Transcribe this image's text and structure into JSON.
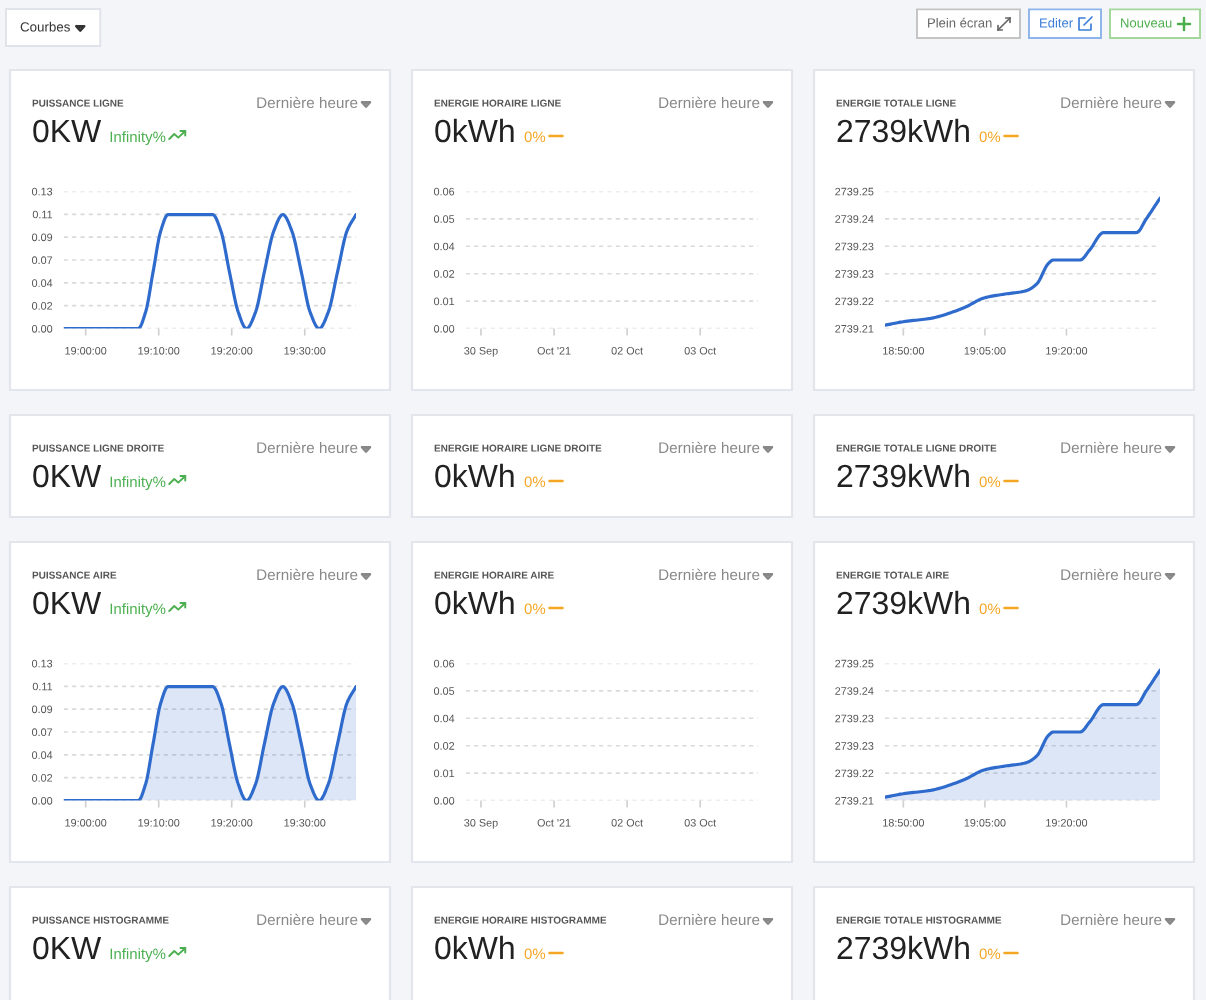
{
  "chart_data": [
    {
      "type": "other",
      "annotations": [
        "Courbes",
        "Plein écran",
        "Editer",
        "Nouveau"
      ]
    },
    {
      "type": "line",
      "title": "PUISSANCE LIGNE",
      "subtitle": "0KW",
      "annotations": [
        "Infinity%",
        "Dernière heure"
      ],
      "color": "#2f6bcc",
      "x": [
        18.95,
        19.12,
        19.137,
        19.154,
        19.171,
        19.188,
        19.29,
        19.309,
        19.328,
        19.348,
        19.367,
        19.388,
        19.408,
        19.429,
        19.45,
        19.471,
        19.492,
        19.512,
        19.533,
        19.554,
        19.575,
        19.596,
        19.617
      ],
      "values": [
        0,
        0,
        0.016,
        0.054,
        0.092,
        0.108,
        0.108,
        0.092,
        0.054,
        0.016,
        0,
        0.016,
        0.054,
        0.092,
        0.108,
        0.092,
        0.054,
        0.016,
        0,
        0.016,
        0.054,
        0.092,
        0.108
      ],
      "xlim": [
        18.95,
        19.617
      ],
      "xticks": [
        {
          "value": 19,
          "label": "19:00:00"
        },
        {
          "value": 19.1667,
          "label": "19:10:00"
        },
        {
          "value": 19.3333,
          "label": "19:20:00"
        },
        {
          "value": 19.5,
          "label": "19:30:00"
        }
      ],
      "ylim": [
        0,
        0.13
      ],
      "yticks": [
        {
          "value": 0,
          "label": "0.00"
        },
        {
          "value": 0.0217,
          "label": "0.02"
        },
        {
          "value": 0.0433,
          "label": "0.04"
        },
        {
          "value": 0.065,
          "label": "0.07"
        },
        {
          "value": 0.0867,
          "label": "0.09"
        },
        {
          "value": 0.1083,
          "label": "0.11"
        },
        {
          "value": 0.13,
          "label": "0.13"
        }
      ],
      "grid": "y"
    },
    {
      "type": "line",
      "title": "ENERGIE HORAIRE LIGNE",
      "subtitle": "0kWh",
      "annotations": [
        "0%",
        "Dernière heure"
      ],
      "xlim": [
        "2021-09-29T19:00",
        "2021-10-03T19:00"
      ],
      "xticks": [
        {
          "value": "2021-09-30",
          "label": "30 Sep"
        },
        {
          "value": "2021-10-01",
          "label": "Oct '21"
        },
        {
          "value": "2021-10-02",
          "label": "02 Oct"
        },
        {
          "value": "2021-10-03",
          "label": "03 Oct"
        }
      ],
      "ylim": [
        0,
        0.06
      ],
      "yticks": [
        {
          "value": 0,
          "label": "0.00"
        },
        {
          "value": 0.012,
          "label": "0.01"
        },
        {
          "value": 0.024,
          "label": "0.02"
        },
        {
          "value": 0.036,
          "label": "0.04"
        },
        {
          "value": 0.048,
          "label": "0.05"
        },
        {
          "value": 0.06,
          "label": "0.06"
        }
      ],
      "grid": "y"
    },
    {
      "type": "line",
      "title": "ENERGIE TOTALE LIGNE",
      "subtitle": "2739kWh",
      "annotations": [
        "0%",
        "Dernière heure"
      ],
      "color": "#2f6bcc",
      "x": [
        18.777,
        18.833,
        18.917,
        19.017,
        19.083,
        19.14,
        19.208,
        19.242,
        19.278,
        19.293,
        19.375,
        19.405,
        19.447,
        19.548,
        19.578,
        19.62
      ],
      "values": [
        2739.211,
        2739.212,
        2739.213,
        2739.216,
        2739.219,
        2739.22,
        2739.221,
        2739.223,
        2739.229,
        2739.23,
        2739.23,
        2739.233,
        2739.238,
        2739.238,
        2739.242,
        2739.248
      ],
      "xlim": [
        18.777,
        19.62
      ],
      "xticks": [
        {
          "value": 18.8333,
          "label": "18:50:00"
        },
        {
          "value": 19.0833,
          "label": "19:05:00"
        },
        {
          "value": 19.3333,
          "label": "19:20:00"
        }
      ],
      "ylim": [
        2739.21,
        2739.25
      ],
      "yticks": [
        {
          "value": 2739.21,
          "label": "2739.21"
        },
        {
          "value": 2739.218,
          "label": "2739.22"
        },
        {
          "value": 2739.226,
          "label": "2739.23"
        },
        {
          "value": 2739.234,
          "label": "2739.23"
        },
        {
          "value": 2739.242,
          "label": "2739.24"
        },
        {
          "value": 2739.25,
          "label": "2739.25"
        }
      ],
      "grid": "y"
    },
    {
      "type": "other",
      "title": "PUISSANCE LIGNE DROITE",
      "subtitle": "0KW",
      "annotations": [
        "Infinity%",
        "Dernière heure"
      ]
    },
    {
      "type": "other",
      "title": "ENERGIE HORAIRE LIGNE DROITE",
      "subtitle": "0kWh",
      "annotations": [
        "0%",
        "Dernière heure"
      ]
    },
    {
      "type": "other",
      "title": "ENERGIE TOTALE LIGNE DROITE",
      "subtitle": "2739kWh",
      "annotations": [
        "0%",
        "Dernière heure"
      ]
    },
    {
      "type": "area",
      "title": "PUISSANCE AIRE",
      "subtitle": "0KW",
      "annotations": [
        "Infinity%",
        "Dernière heure"
      ],
      "color": "#2f6bcc",
      "x": [
        18.95,
        19.12,
        19.137,
        19.154,
        19.171,
        19.188,
        19.29,
        19.309,
        19.328,
        19.348,
        19.367,
        19.388,
        19.408,
        19.429,
        19.45,
        19.471,
        19.492,
        19.512,
        19.533,
        19.554,
        19.575,
        19.596,
        19.617
      ],
      "values": [
        0,
        0,
        0.016,
        0.054,
        0.092,
        0.108,
        0.108,
        0.092,
        0.054,
        0.016,
        0,
        0.016,
        0.054,
        0.092,
        0.108,
        0.092,
        0.054,
        0.016,
        0,
        0.016,
        0.054,
        0.092,
        0.108
      ],
      "xlim": [
        18.95,
        19.617
      ],
      "xticks": [
        {
          "value": 19,
          "label": "19:00:00"
        },
        {
          "value": 19.1667,
          "label": "19:10:00"
        },
        {
          "value": 19.3333,
          "label": "19:20:00"
        },
        {
          "value": 19.5,
          "label": "19:30:00"
        }
      ],
      "ylim": [
        0,
        0.13
      ],
      "yticks": [
        {
          "value": 0,
          "label": "0.00"
        },
        {
          "value": 0.0217,
          "label": "0.02"
        },
        {
          "value": 0.0433,
          "label": "0.04"
        },
        {
          "value": 0.065,
          "label": "0.07"
        },
        {
          "value": 0.0867,
          "label": "0.09"
        },
        {
          "value": 0.1083,
          "label": "0.11"
        },
        {
          "value": 0.13,
          "label": "0.13"
        }
      ],
      "grid": "y"
    },
    {
      "type": "area",
      "title": "ENERGIE HORAIRE AIRE",
      "subtitle": "0kWh",
      "annotations": [
        "0%",
        "Dernière heure"
      ],
      "xlim": [
        "2021-09-29T19:00",
        "2021-10-03T19:00"
      ],
      "xticks": [
        {
          "value": "2021-09-30",
          "label": "30 Sep"
        },
        {
          "value": "2021-10-01",
          "label": "Oct '21"
        },
        {
          "value": "2021-10-02",
          "label": "02 Oct"
        },
        {
          "value": "2021-10-03",
          "label": "03 Oct"
        }
      ],
      "ylim": [
        0,
        0.06
      ],
      "yticks": [
        {
          "value": 0,
          "label": "0.00"
        },
        {
          "value": 0.012,
          "label": "0.01"
        },
        {
          "value": 0.024,
          "label": "0.02"
        },
        {
          "value": 0.036,
          "label": "0.04"
        },
        {
          "value": 0.048,
          "label": "0.05"
        },
        {
          "value": 0.06,
          "label": "0.06"
        }
      ],
      "grid": "y"
    },
    {
      "type": "area",
      "title": "ENERGIE TOTALE AIRE",
      "subtitle": "2739kWh",
      "annotations": [
        "0%",
        "Dernière heure"
      ],
      "color": "#2f6bcc",
      "x": [
        18.777,
        18.833,
        18.917,
        19.017,
        19.083,
        19.14,
        19.208,
        19.242,
        19.278,
        19.293,
        19.375,
        19.405,
        19.447,
        19.548,
        19.578,
        19.62
      ],
      "values": [
        2739.211,
        2739.212,
        2739.213,
        2739.216,
        2739.219,
        2739.22,
        2739.221,
        2739.223,
        2739.229,
        2739.23,
        2739.23,
        2739.233,
        2739.238,
        2739.238,
        2739.242,
        2739.248
      ],
      "xlim": [
        18.777,
        19.62
      ],
      "xticks": [
        {
          "value": 18.8333,
          "label": "18:50:00"
        },
        {
          "value": 19.0833,
          "label": "19:05:00"
        },
        {
          "value": 19.3333,
          "label": "19:20:00"
        }
      ],
      "ylim": [
        2739.21,
        2739.25
      ],
      "yticks": [
        {
          "value": 2739.21,
          "label": "2739.21"
        },
        {
          "value": 2739.218,
          "label": "2739.22"
        },
        {
          "value": 2739.226,
          "label": "2739.23"
        },
        {
          "value": 2739.234,
          "label": "2739.23"
        },
        {
          "value": 2739.242,
          "label": "2739.24"
        },
        {
          "value": 2739.25,
          "label": "2739.25"
        }
      ],
      "grid": "y"
    },
    {
      "type": "other",
      "title": "PUISSANCE HISTOGRAMME",
      "subtitle": "0KW",
      "annotations": [
        "Infinity%",
        "Dernière heure"
      ]
    },
    {
      "type": "other",
      "title": "ENERGIE HORAIRE HISTOGRAMME",
      "subtitle": "0kWh",
      "annotations": [
        "0%",
        "Dernière heure"
      ]
    },
    {
      "type": "other",
      "title": "ENERGIE TOTALE HISTOGRAMME",
      "subtitle": "2739kWh",
      "annotations": [
        "0%",
        "Dernière heure"
      ]
    }
  ]
}
